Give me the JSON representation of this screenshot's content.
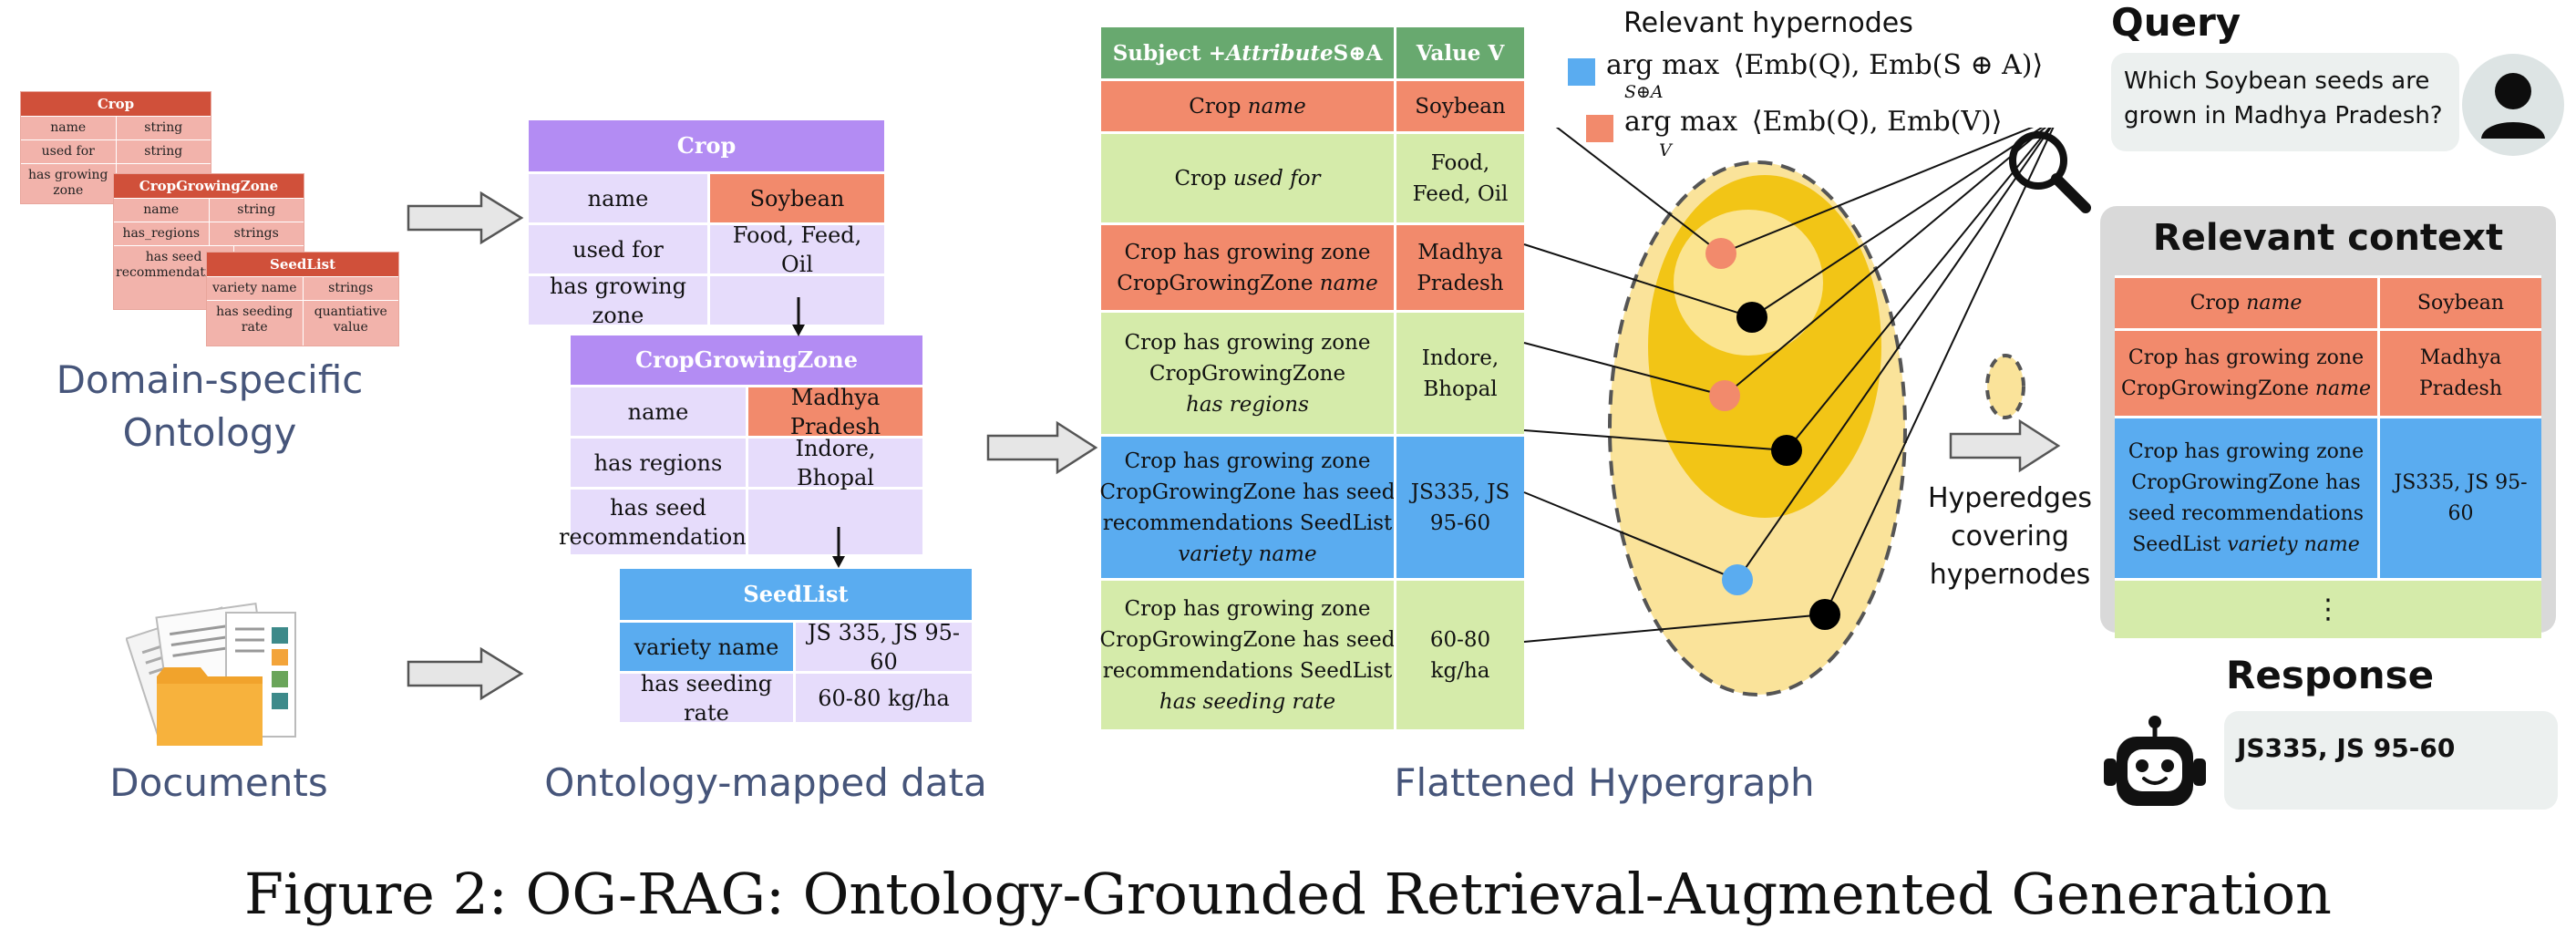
{
  "ontology": {
    "crop": {
      "title": "Crop",
      "rows": [
        [
          "name",
          "string"
        ],
        [
          "used for",
          "string"
        ],
        [
          "has growing zone",
          ""
        ]
      ]
    },
    "zone": {
      "title": "CropGrowingZone",
      "rows": [
        [
          "name",
          "string"
        ],
        [
          "has_regions",
          "strings"
        ],
        [
          "has seed recommendations",
          ""
        ]
      ]
    },
    "seed": {
      "title": "SeedList",
      "rows": [
        [
          "variety name",
          "strings"
        ],
        [
          "has seeding rate",
          "quantiative value"
        ]
      ]
    },
    "caption_line1": "Domain-specific",
    "caption_line2": "Ontology"
  },
  "documents": {
    "caption": "Documents"
  },
  "mapped": {
    "caption": "Ontology-mapped data",
    "crop": {
      "title": "Crop",
      "rows": [
        {
          "k": "name",
          "v": "Soybean"
        },
        {
          "k": "used for",
          "v": "Food, Feed, Oil"
        },
        {
          "k": "has growing zone",
          "v": ""
        }
      ]
    },
    "zone": {
      "title": "CropGrowingZone",
      "rows": [
        {
          "k": "name",
          "v": "Madhya Pradesh"
        },
        {
          "k": "has regions",
          "v": "Indore, Bhopal"
        },
        {
          "k": "has seed recommendations",
          "v": ""
        }
      ]
    },
    "seed": {
      "title": "SeedList",
      "rows": [
        {
          "k": "variety name",
          "v": "JS 335, JS 95-60"
        },
        {
          "k": "has seeding rate",
          "v": "60-80 kg/ha"
        }
      ]
    }
  },
  "flattened": {
    "caption": "Flattened Hypergraph",
    "header_subject": "Subject + ",
    "header_attribute": "Attribute",
    "header_suffix": " S⊕A",
    "header_value": "Value V",
    "rows": [
      {
        "lines": [
          "Crop "
        ],
        "attr": "name",
        "value": [
          "Soybean"
        ],
        "color": "#f28a6c"
      },
      {
        "lines": [
          "Crop "
        ],
        "attr": "used for",
        "value": [
          "Food,",
          "Feed, Oil"
        ],
        "color": "#d5ebaa"
      },
      {
        "lines": [
          "Crop has growing zone",
          "CropGrowingZone "
        ],
        "attr": "name",
        "value": [
          "Madhya",
          "Pradesh"
        ],
        "color": "#f28a6c"
      },
      {
        "lines": [
          "Crop has growing zone",
          "CropGrowingZone"
        ],
        "attr": "has regions",
        "value": [
          "Indore,",
          "Bhopal"
        ],
        "color": "#d5ebaa"
      },
      {
        "lines": [
          "Crop has growing zone",
          "CropGrowingZone has seed",
          "recommendations SeedList"
        ],
        "attr": "variety name",
        "value": [
          "JS335, JS",
          "95-60"
        ],
        "color": "#5aacf0"
      },
      {
        "lines": [
          "Crop has growing zone",
          "CropGrowingZone has seed",
          "recommendations SeedList"
        ],
        "attr": "has seeding rate",
        "value": [
          "60-80",
          "kg/ha"
        ],
        "color": "#d5ebaa"
      }
    ]
  },
  "hypergraph": {
    "relevant_label": "Relevant hypernodes",
    "formula_sa_pre": "arg max",
    "formula_sa_sub": "S⊕A",
    "formula_sa_body": "⟨Emb(Q), Emb(S ⊕ A)⟩",
    "formula_v_pre": "arg max",
    "formula_v_sub": "V",
    "formula_v_body": "⟨Emb(Q), Emb(V)⟩",
    "hyperedges_label": [
      "Hyperedges",
      "covering",
      "hypernodes"
    ],
    "blue": "#5aacf0",
    "orange": "#f28a6c"
  },
  "query": {
    "title": "Query",
    "text_line1": "Which Soybean seeds are",
    "text_line2": "grown in Madhya Pradesh?"
  },
  "context": {
    "title": "Relevant context",
    "rows": [
      {
        "lines": [
          "Crop "
        ],
        "attr": "name",
        "value": [
          "Soybean"
        ],
        "color": "#f28a6c"
      },
      {
        "lines": [
          "Crop has growing zone",
          "CropGrowingZone "
        ],
        "attr": "name",
        "value": [
          "Madhya",
          "Pradesh"
        ],
        "color": "#f28a6c"
      },
      {
        "lines": [
          "Crop has growing zone",
          "CropGrowingZone has",
          "seed recommendations",
          "SeedList "
        ],
        "attr": "variety name",
        "value": [
          "JS335, JS 95-",
          "60"
        ],
        "color": "#5aacf0"
      }
    ],
    "ellipsis": "⋮"
  },
  "response": {
    "title": "Response",
    "text": "JS335, JS 95-60"
  },
  "figure_caption": "Figure 2: OG-RAG: Ontology-Grounded Retrieval-Augmented Generation"
}
